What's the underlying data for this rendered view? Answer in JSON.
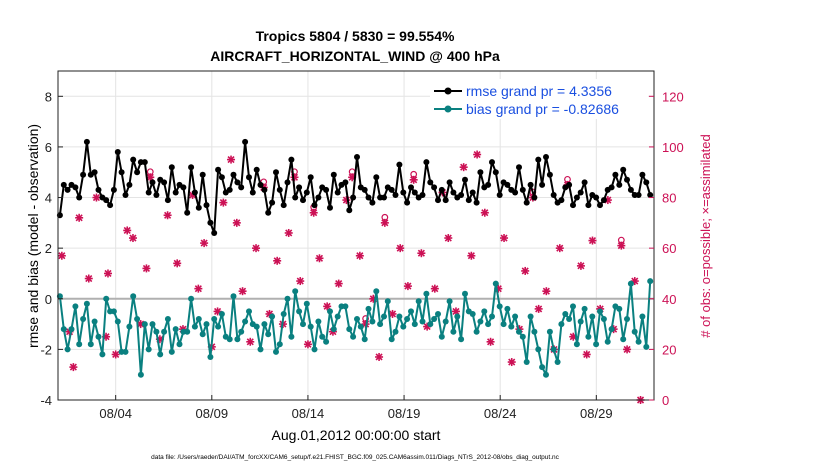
{
  "chart_data": {
    "type": "line",
    "title_line1": "Tropics 5804 / 5830 = 99.554%",
    "title_line2": "AIRCRAFT_HORIZONTAL_WIND @ 400 hPa",
    "xlabel": "Aug.01,2012 00:00:00 start",
    "ylabel_left": "rmse and bias (model - observation)",
    "ylabel_right": "# of obs: o=possible; ×=assimilated",
    "footer": "data file: /Users/raeder/DAI/ATM_forcXX/CAM6_setup/f.e21.FHIST_BGC.f09_025.CAM6assim.011/Diags_NTrS_2012-08/obs_diag_output.nc",
    "x_range": [
      1,
      32
    ],
    "ylim_left": [
      -4,
      9
    ],
    "ylim_right": [
      0,
      130
    ],
    "x_ticks": [
      4,
      9,
      14,
      19,
      24,
      29
    ],
    "x_tick_labels": [
      "08/04",
      "08/09",
      "08/14",
      "08/19",
      "08/24",
      "08/29"
    ],
    "y_ticks_left": [
      -4,
      -2,
      0,
      2,
      4,
      6,
      8
    ],
    "y_ticks_right": [
      0,
      20,
      40,
      60,
      80,
      100,
      120
    ],
    "zero_line": 0,
    "colors": {
      "rmse": "#000000",
      "bias": "#0a8080",
      "obs": "#cc1155",
      "legend_text": "#1a4fe0",
      "zero": "#b0b0b0"
    },
    "legend": [
      {
        "name": "rmse grand pr = 4.3356",
        "color": "#000000"
      },
      {
        "name": "bias grand pr = -0.82686",
        "color": "#0a8080"
      }
    ],
    "series": [
      {
        "name": "rmse",
        "values": [
          3.3,
          4.5,
          4.3,
          4.5,
          4.4,
          4.0,
          4.9,
          6.2,
          4.9,
          5.0,
          4.3,
          4.0,
          3.9,
          3.7,
          4.3,
          5.8,
          5.0,
          4.1,
          4.5,
          5.5,
          5.0,
          5.4,
          5.4,
          4.2,
          4.6,
          4.1,
          4.7,
          4.6,
          3.9,
          5.2,
          4.2,
          4.5,
          4.4,
          3.4,
          5.2,
          4.2,
          3.6,
          4.9,
          3.7,
          3.0,
          2.6,
          5.1,
          4.8,
          4.2,
          4.3,
          4.9,
          4.6,
          4.4,
          6.2,
          4.8,
          4.2,
          5.1,
          4.5,
          4.3,
          3.4,
          3.8,
          5.0,
          4.3,
          3.7,
          4.6,
          5.5,
          4.0,
          4.4,
          3.9,
          4.2,
          4.8,
          3.7,
          4.0,
          4.4,
          4.3,
          3.6,
          4.9,
          4.2,
          4.5,
          4.6,
          3.5,
          4.0,
          5.6,
          4.4,
          4.3,
          4.0,
          3.8,
          4.8,
          4.0,
          4.0,
          4.4,
          4.3,
          4.1,
          5.3,
          4.2,
          3.8,
          4.4,
          4.2,
          4.0,
          4.1,
          5.4,
          4.6,
          4.4,
          3.9,
          4.3,
          3.9,
          4.6,
          4.2,
          4.0,
          4.1,
          4.7,
          3.9,
          4.2,
          3.8,
          5.0,
          4.4,
          4.5,
          5.4,
          5.0,
          4.1,
          4.6,
          4.5,
          4.3,
          4.2,
          5.2,
          4.3,
          3.8,
          4.5,
          4.0,
          5.5,
          4.5,
          5.6,
          4.9,
          4.1,
          3.8,
          3.9,
          4.4,
          4.5,
          3.7,
          4.0,
          4.2,
          4.6,
          3.7,
          4.1,
          4.0,
          3.7,
          3.9,
          4.3,
          4.4,
          4.9,
          4.5,
          5.1,
          4.7,
          4.3,
          4.1,
          4.1,
          4.9,
          4.6,
          4.1
        ]
      },
      {
        "name": "bias",
        "values": [
          0.1,
          -1.2,
          -2.0,
          -1.2,
          -0.3,
          -1.8,
          -0.8,
          -0.2,
          -1.8,
          -0.9,
          -1.5,
          -2.2,
          0.0,
          -0.5,
          -0.5,
          -0.9,
          -2.1,
          -2.1,
          -1.1,
          0.1,
          -0.8,
          -3.0,
          -1.0,
          -2.0,
          -1.0,
          -1.3,
          -2.2,
          -1.3,
          -0.8,
          -2.1,
          -1.2,
          -1.8,
          -1.3,
          -1.3,
          0.0,
          -1.1,
          -0.8,
          -1.4,
          -1.0,
          -2.3,
          -0.8,
          -1.1,
          -0.6,
          -1.5,
          -1.6,
          0.1,
          -1.6,
          -1.3,
          -0.9,
          -0.5,
          -1.0,
          -1.1,
          -2.0,
          -1.0,
          -1.4,
          -0.7,
          -2.1,
          -1.8,
          -0.6,
          0.0,
          -1.5,
          0.3,
          -0.5,
          -1.0,
          -0.2,
          -1.1,
          -2.0,
          -0.9,
          -1.5,
          -1.7,
          -0.5,
          -1.2,
          -0.7,
          -0.3,
          -0.3,
          -1.2,
          -1.5,
          -0.8,
          -1.1,
          -1.6,
          -0.4,
          -0.9,
          0.3,
          -1.0,
          -0.7,
          -0.1,
          -1.6,
          -1.3,
          -0.7,
          -1.1,
          -0.8,
          -0.5,
          -1.0,
          -0.1,
          -0.9,
          0.2,
          -1.0,
          -0.8,
          -0.6,
          -1.5,
          -0.9,
          -0.1,
          -1.3,
          -0.7,
          -1.6,
          0.2,
          -0.5,
          -0.6,
          -1.3,
          -0.9,
          -0.5,
          -1.0,
          -0.7,
          0.6,
          -0.3,
          -1.0,
          -0.4,
          -1.1,
          -0.7,
          -1.3,
          -1.5,
          -2.5,
          -0.7,
          -1.3,
          -2.0,
          -2.7,
          -3.0,
          -1.3,
          -2.0,
          -2.5,
          -1.0,
          -0.6,
          -0.8,
          -0.3,
          -1.8,
          -0.9,
          -0.4,
          -1.5,
          -0.7,
          -1.8,
          -0.5,
          -0.8,
          -1.7,
          -1.2,
          -0.3,
          -0.4,
          -1.6,
          -0.8,
          0.6,
          -1.3,
          -1.7,
          -0.7,
          -1.9,
          0.7
        ]
      }
    ],
    "obs_assimilated": [
      {
        "x": 1.2,
        "y": 57
      },
      {
        "x": 1.6,
        "y": 27
      },
      {
        "x": 2.1,
        "y": 72
      },
      {
        "x": 2.6,
        "y": 48
      },
      {
        "x": 1.8,
        "y": 13
      },
      {
        "x": 3.0,
        "y": 80
      },
      {
        "x": 3.6,
        "y": 50
      },
      {
        "x": 3.5,
        "y": 25
      },
      {
        "x": 4.0,
        "y": 18
      },
      {
        "x": 4.6,
        "y": 67
      },
      {
        "x": 4.9,
        "y": 64
      },
      {
        "x": 5.3,
        "y": 30
      },
      {
        "x": 5.8,
        "y": 88
      },
      {
        "x": 5.6,
        "y": 52
      },
      {
        "x": 6.3,
        "y": 24
      },
      {
        "x": 6.7,
        "y": 73
      },
      {
        "x": 7.2,
        "y": 54
      },
      {
        "x": 7.5,
        "y": 28
      },
      {
        "x": 8.0,
        "y": 81
      },
      {
        "x": 8.3,
        "y": 44
      },
      {
        "x": 8.6,
        "y": 62
      },
      {
        "x": 9.0,
        "y": 21
      },
      {
        "x": 9.3,
        "y": 35
      },
      {
        "x": 9.6,
        "y": 78
      },
      {
        "x": 10.0,
        "y": 95
      },
      {
        "x": 10.3,
        "y": 70
      },
      {
        "x": 10.6,
        "y": 43
      },
      {
        "x": 11.0,
        "y": 23
      },
      {
        "x": 11.3,
        "y": 60
      },
      {
        "x": 11.7,
        "y": 84
      },
      {
        "x": 12.0,
        "y": 34
      },
      {
        "x": 12.4,
        "y": 55
      },
      {
        "x": 12.7,
        "y": 30
      },
      {
        "x": 13.0,
        "y": 66
      },
      {
        "x": 13.3,
        "y": 88
      },
      {
        "x": 13.6,
        "y": 47
      },
      {
        "x": 14.0,
        "y": 22
      },
      {
        "x": 14.3,
        "y": 74
      },
      {
        "x": 14.6,
        "y": 56
      },
      {
        "x": 15.0,
        "y": 37
      },
      {
        "x": 15.3,
        "y": 27
      },
      {
        "x": 15.6,
        "y": 46
      },
      {
        "x": 16.0,
        "y": 79
      },
      {
        "x": 16.3,
        "y": 88
      },
      {
        "x": 16.7,
        "y": 57
      },
      {
        "x": 17.0,
        "y": 30
      },
      {
        "x": 17.4,
        "y": 40
      },
      {
        "x": 17.7,
        "y": 17
      },
      {
        "x": 18.0,
        "y": 70
      },
      {
        "x": 18.4,
        "y": 34
      },
      {
        "x": 18.8,
        "y": 60
      },
      {
        "x": 19.2,
        "y": 45
      },
      {
        "x": 19.5,
        "y": 87
      },
      {
        "x": 19.9,
        "y": 58
      },
      {
        "x": 20.2,
        "y": 29
      },
      {
        "x": 20.6,
        "y": 44
      },
      {
        "x": 21.0,
        "y": 82
      },
      {
        "x": 21.3,
        "y": 64
      },
      {
        "x": 21.7,
        "y": 35
      },
      {
        "x": 22.1,
        "y": 92
      },
      {
        "x": 22.5,
        "y": 57
      },
      {
        "x": 22.8,
        "y": 97
      },
      {
        "x": 23.2,
        "y": 74
      },
      {
        "x": 23.5,
        "y": 23
      },
      {
        "x": 23.9,
        "y": 44
      },
      {
        "x": 24.2,
        "y": 64
      },
      {
        "x": 24.6,
        "y": 15
      },
      {
        "x": 25.0,
        "y": 28
      },
      {
        "x": 25.3,
        "y": 51
      },
      {
        "x": 25.7,
        "y": 80
      },
      {
        "x": 26.0,
        "y": 36
      },
      {
        "x": 26.4,
        "y": 43
      },
      {
        "x": 26.8,
        "y": 20
      },
      {
        "x": 27.1,
        "y": 60
      },
      {
        "x": 27.5,
        "y": 85
      },
      {
        "x": 27.8,
        "y": 25
      },
      {
        "x": 28.2,
        "y": 53
      },
      {
        "x": 28.5,
        "y": 18
      },
      {
        "x": 28.8,
        "y": 63
      },
      {
        "x": 29.2,
        "y": 36
      },
      {
        "x": 29.6,
        "y": 79
      },
      {
        "x": 29.9,
        "y": 28
      },
      {
        "x": 30.3,
        "y": 61
      },
      {
        "x": 30.6,
        "y": 20
      },
      {
        "x": 31.0,
        "y": 47
      },
      {
        "x": 31.3,
        "y": 0
      }
    ],
    "obs_possible": [
      {
        "x": 5.8,
        "y": 89
      },
      {
        "x": 11.7,
        "y": 85
      },
      {
        "x": 13.3,
        "y": 89
      },
      {
        "x": 16.3,
        "y": 89
      },
      {
        "x": 17.0,
        "y": 31
      },
      {
        "x": 18.0,
        "y": 71
      },
      {
        "x": 19.5,
        "y": 88
      },
      {
        "x": 25.7,
        "y": 81
      },
      {
        "x": 27.5,
        "y": 86
      },
      {
        "x": 30.3,
        "y": 62
      },
      {
        "x": 14.3,
        "y": 75
      }
    ]
  }
}
